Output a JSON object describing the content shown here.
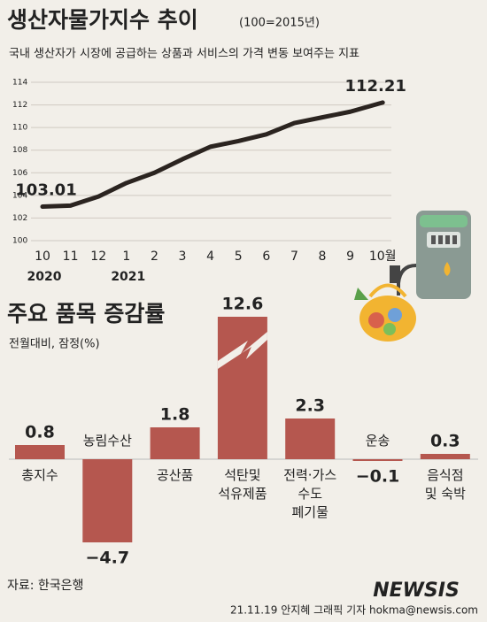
{
  "chart_data": [
    {
      "type": "line",
      "title": "생산자물가지수 추이",
      "subtitle": "(100=2015년)",
      "description": "국내 생산자가 시장에 공급하는 상품과 서비스의 가격 변동 보여주는 지표",
      "categories": [
        "10",
        "11",
        "12",
        "1",
        "2",
        "3",
        "4",
        "5",
        "6",
        "7",
        "8",
        "9",
        "10월"
      ],
      "years": [
        "2020",
        "2021"
      ],
      "values": [
        103.01,
        103.1,
        103.9,
        105.1,
        106.0,
        107.2,
        108.3,
        108.8,
        109.4,
        110.4,
        110.9,
        111.4,
        112.21
      ],
      "value_labels": [
        "103.01",
        null,
        null,
        null,
        null,
        null,
        null,
        null,
        null,
        null,
        null,
        null,
        "112.21"
      ],
      "color": "#2b2420",
      "ylim": [
        100,
        114
      ],
      "yticks": [
        100,
        102,
        104,
        106,
        108,
        110,
        112,
        114
      ],
      "grid": true
    },
    {
      "type": "bar",
      "title": "주요 품목 증감률",
      "subtitle": "전월대비, 잠정(%)",
      "categories": [
        [
          "총지수"
        ],
        [
          "농림수산"
        ],
        [
          "공산품"
        ],
        [
          "석탄및",
          "석유제품"
        ],
        [
          "전력·가스",
          "수도",
          "폐기물"
        ],
        [
          "운송"
        ],
        [
          "음식점",
          "및 숙박"
        ]
      ],
      "values": [
        0.8,
        -4.7,
        1.8,
        12.6,
        2.3,
        -0.1,
        0.3
      ],
      "value_labels": [
        "0.8",
        "−4.7",
        "1.8",
        "12.6",
        "2.3",
        "−0.1",
        "0.3"
      ],
      "color": "#b5574f"
    }
  ],
  "source": "자료: 한국은행",
  "brand": "NEWSIS",
  "credit": "21.11.19 안지혜 그래픽 기자 hokma@newsis.com"
}
